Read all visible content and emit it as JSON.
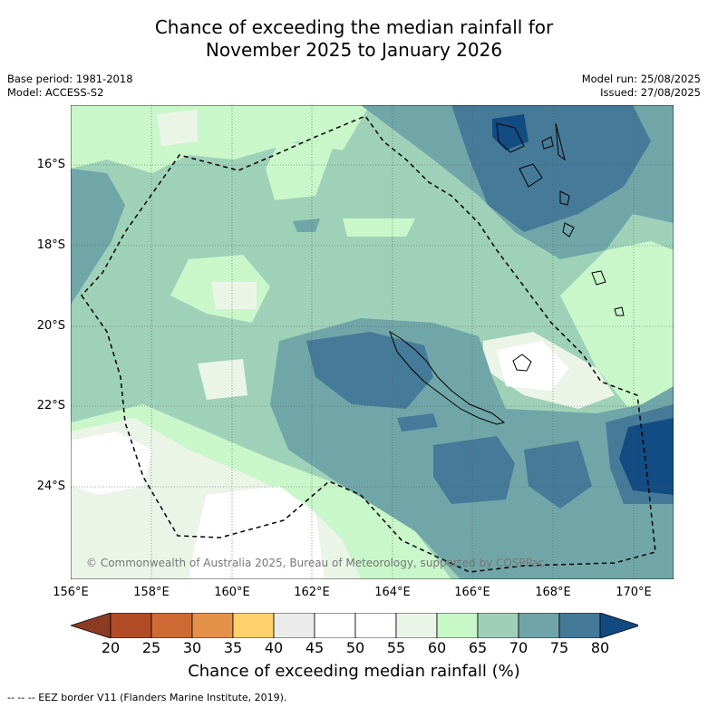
{
  "title_line1": "Chance of exceeding the median rainfall for",
  "title_line2": "November 2025 to January 2026",
  "meta": {
    "base_period": "Base period: 1981-2018",
    "model": "Model: ACCESS-S2",
    "model_run": "Model run: 25/08/2025",
    "issued": "Issued: 27/08/2025"
  },
  "map": {
    "lon_range": [
      156,
      171
    ],
    "lat_range": [
      -26.4,
      -14.6
    ],
    "x_ticks": [
      "156°E",
      "158°E",
      "160°E",
      "162°E",
      "164°E",
      "166°E",
      "168°E",
      "170°E"
    ],
    "y_ticks": [
      "16°S",
      "18°S",
      "20°S",
      "22°S",
      "24°S"
    ],
    "copyright": "© Commonwealth of Australia 2025, Bureau of Meteorology, supported by COSPPac",
    "grid": true
  },
  "colorbar": {
    "labels": [
      "20",
      "25",
      "30",
      "35",
      "40",
      "45",
      "50",
      "55",
      "60",
      "65",
      "70",
      "75",
      "80"
    ],
    "colors": [
      "#8c3a22",
      "#b24c27",
      "#cf6a35",
      "#e4924a",
      "#ffd36a",
      "#ebebeb",
      "#ffffff",
      "#ffffff",
      "#e9f5e6",
      "#c8f7c8",
      "#9ed0b7",
      "#6fa4a8",
      "#447a98",
      "#104a80"
    ],
    "title": "Chance of exceeding median rainfall (%)"
  },
  "footnote": "--  --  -- EEZ border V11 (Flanders Marine Institute, 2019).",
  "colors": {
    "c55_60": "#eaf5e8",
    "c60_65": "#c9f7ca",
    "c65_70": "#9ed1b8",
    "c70_75": "#70a6a8",
    "c75_80": "#457b98",
    "c80": "#134c82"
  }
}
